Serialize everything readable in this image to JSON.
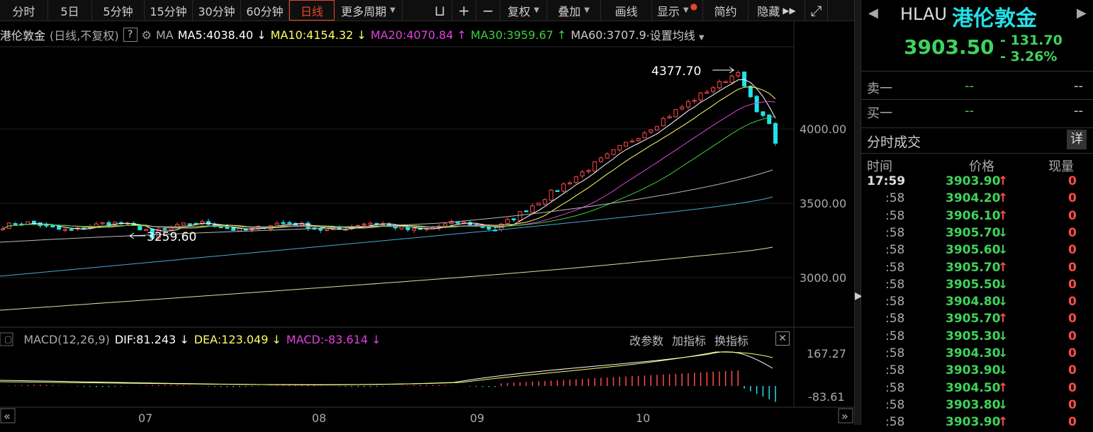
{
  "toolbar": {
    "items": [
      "分时",
      "5日",
      "5分钟",
      "15分钟",
      "30分钟",
      "60分钟",
      "日线",
      "更多周期"
    ],
    "active": "日线",
    "tools": [
      "复权",
      "叠加",
      "画线",
      "显示",
      "简约",
      "隐藏"
    ]
  },
  "ma": {
    "name": "港伦敦金",
    "adj": "(日线,不复权)",
    "label": "MA",
    "ma5": "MA5:4038.40",
    "ma10": "MA10:4154.32",
    "ma20": "MA20:4070.84",
    "ma30": "MA30:3959.67",
    "ma60": "MA60:3707.9",
    "settings": "设置均线"
  },
  "annotations": {
    "high": "4377.70",
    "low": "3259.60"
  },
  "price_axis": [
    "4000.00",
    "3500.00",
    "3000.00"
  ],
  "macd": {
    "name": "MACD(12,26,9)",
    "dif": "DIF:81.243",
    "dea": "DEA:123.049",
    "macd": "MACD:-83.614",
    "tools": [
      "改参数",
      "加指标",
      "换指标"
    ],
    "axis_top": "167.27",
    "axis_bot": "-83.61"
  },
  "months": [
    "07",
    "08",
    "09",
    "10"
  ],
  "quote": {
    "code": "HLAU",
    "name": "港伦敦金",
    "price": "3903.50",
    "change": "- 131.70",
    "pct": "- 3.26%"
  },
  "book": {
    "sell_label": "卖一",
    "buy_label": "买一",
    "sell_price": "--",
    "sell_vol": "--",
    "buy_price": "--",
    "buy_vol": "--"
  },
  "ticks": {
    "title": "分时成交",
    "detail": "详",
    "cols": [
      "时间",
      "价格",
      "现量"
    ],
    "rows": [
      {
        "t": "17:59",
        "p": "3903.90",
        "d": "up",
        "v": "0"
      },
      {
        "t": ":58",
        "p": "3904.20",
        "d": "up",
        "v": "0"
      },
      {
        "t": ":58",
        "p": "3906.10",
        "d": "up",
        "v": "0"
      },
      {
        "t": ":58",
        "p": "3905.70",
        "d": "down",
        "v": "0"
      },
      {
        "t": ":58",
        "p": "3905.60",
        "d": "down",
        "v": "0"
      },
      {
        "t": ":58",
        "p": "3905.70",
        "d": "up",
        "v": "0"
      },
      {
        "t": ":58",
        "p": "3905.50",
        "d": "down",
        "v": "0"
      },
      {
        "t": ":58",
        "p": "3904.80",
        "d": "down",
        "v": "0"
      },
      {
        "t": ":58",
        "p": "3905.70",
        "d": "up",
        "v": "0"
      },
      {
        "t": ":58",
        "p": "3905.30",
        "d": "down",
        "v": "0"
      },
      {
        "t": ":58",
        "p": "3904.30",
        "d": "down",
        "v": "0"
      },
      {
        "t": ":58",
        "p": "3903.90",
        "d": "down",
        "v": "0"
      },
      {
        "t": ":58",
        "p": "3904.50",
        "d": "up",
        "v": "0"
      },
      {
        "t": ":58",
        "p": "3903.80",
        "d": "down",
        "v": "0"
      },
      {
        "t": ":58",
        "p": "3903.90",
        "d": "up",
        "v": "0"
      }
    ]
  },
  "colors": {
    "up": "#ff4b4b",
    "down": "#22e0e8",
    "ma5": "#ffffff",
    "ma10": "#ffff66",
    "ma20": "#e040e0",
    "ma30": "#3ccf3c",
    "ma60": "#bbbbbb",
    "ma120": "#4aa8d8",
    "ma250": "#e0e0a0"
  }
}
